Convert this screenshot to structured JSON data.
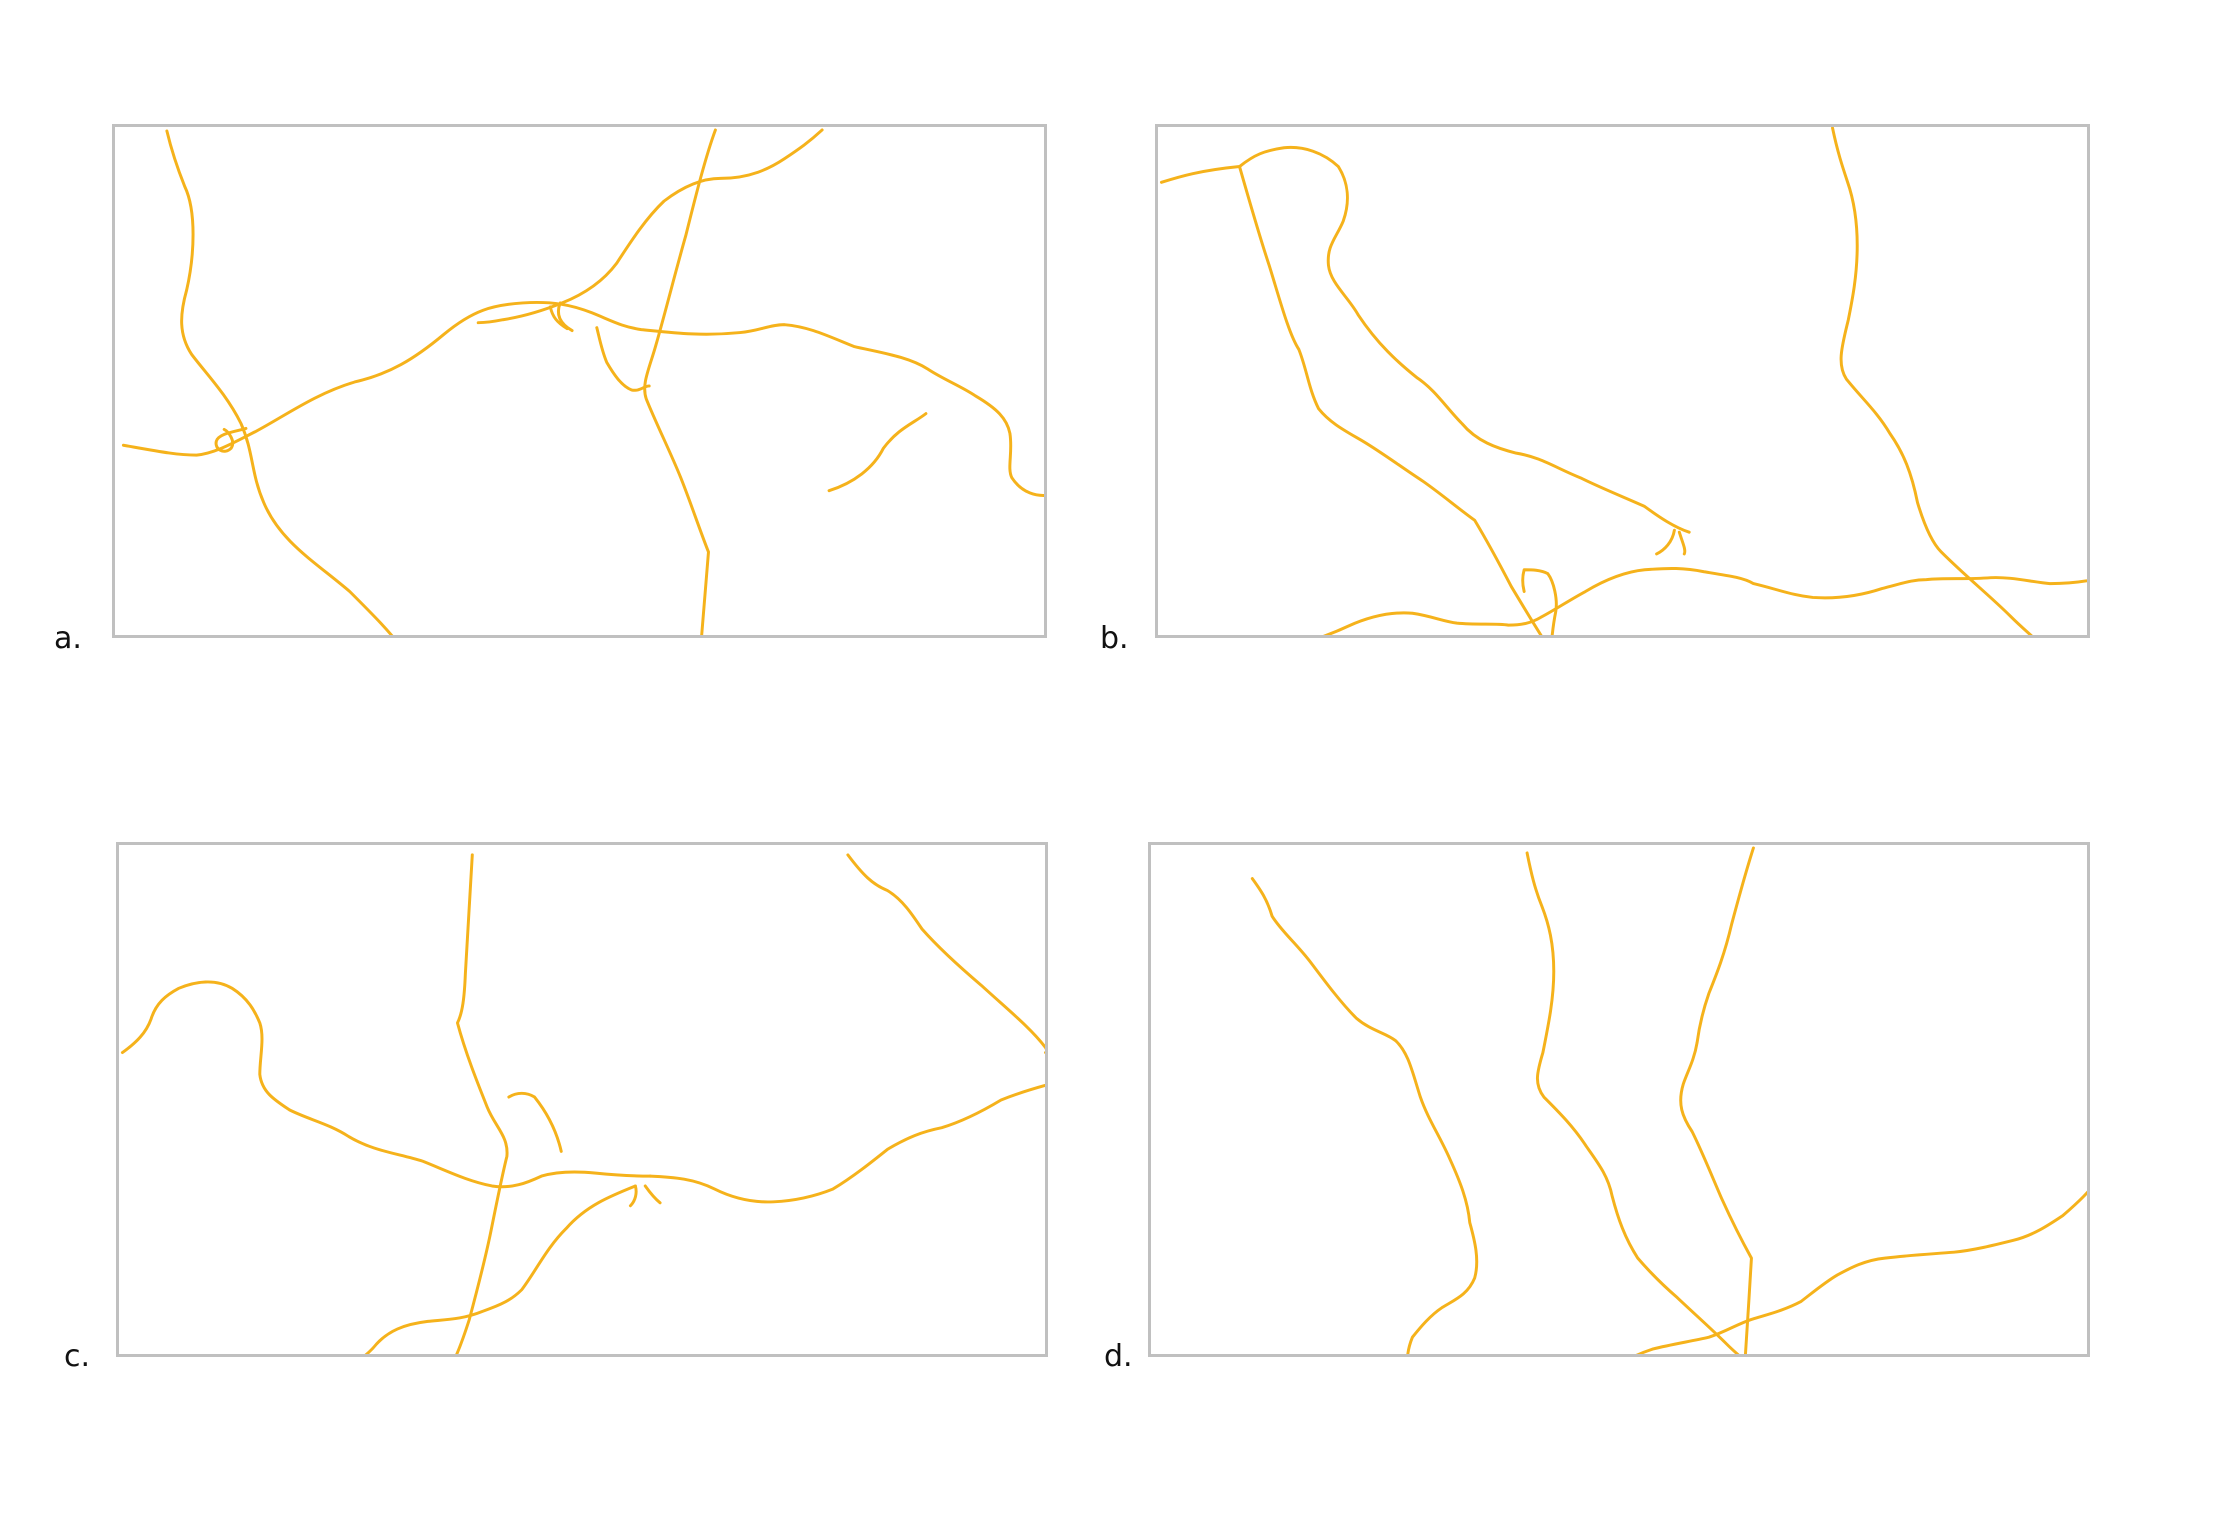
{
  "panels": [
    {
      "id": "a",
      "label": "a."
    },
    {
      "id": "b",
      "label": "b."
    },
    {
      "id": "c",
      "label": "c."
    },
    {
      "id": "d",
      "label": "d."
    }
  ],
  "colors": {
    "road": "#f5b21b",
    "frame": "#c0c0c0",
    "label": "#111111"
  }
}
